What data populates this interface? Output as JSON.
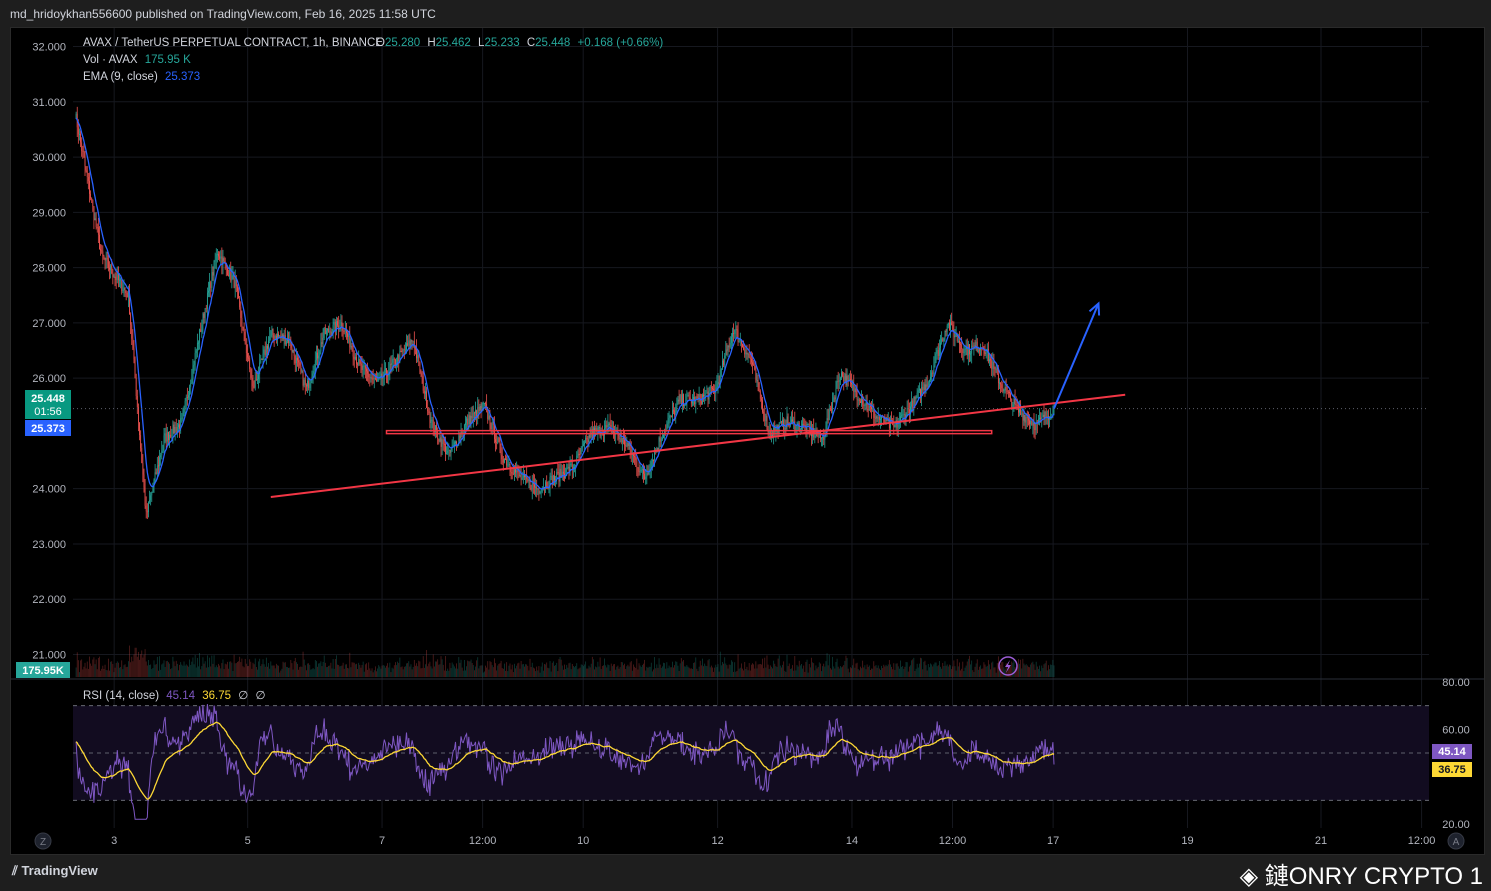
{
  "publish": {
    "author_line": "md_hridoykhan556600 published on TradingView.com, Feb 16, 2025 11:58 UTC"
  },
  "legend": {
    "symbol": "AVAX / TetherUS PERPETUAL CONTRACT, 1h, BINANCE",
    "o_label": "O",
    "o_val": "25.280",
    "h_label": "H",
    "h_val": "25.462",
    "l_label": "L",
    "l_val": "25.233",
    "c_label": "C",
    "c_val": "25.448",
    "change": "+0.168 (+0.66%)",
    "vol_label": "Vol · AVAX",
    "vol_val": "175.95 K",
    "ema_label": "EMA (9, close)",
    "ema_val": "25.373"
  },
  "rsi_legend": {
    "label": "RSI (14, close)",
    "rsi_val": "45.14",
    "ma_val": "36.75",
    "extra1": "∅",
    "extra2": "∅"
  },
  "badges": {
    "price": "25.448",
    "countdown": "01:56",
    "ema": "25.373",
    "volume": "175.95K",
    "rsi": "45.14",
    "rsi_ma": "36.75"
  },
  "footer": {
    "brand": "TradingView",
    "watermark": "鏈ONRY CRYPTO 1",
    "z_btn": "Z",
    "a_btn": "A"
  },
  "colors": {
    "up": "#26a69a",
    "down": "#ef5350",
    "ema": "#2962ff",
    "trend": "#f23645",
    "rsi": "#7e57c2",
    "rsi_ma": "#fdd835",
    "arrow": "#2962ff"
  },
  "chart_data": {
    "type": "candlestick",
    "symbol": "AVAX / TetherUS PERPETUAL CONTRACT",
    "interval": "1h",
    "exchange": "BINANCE",
    "x_ticks": [
      "3",
      "5",
      "7",
      "12:00",
      "10",
      "12",
      "14",
      "12:00",
      "17",
      "19",
      "21",
      "12:00"
    ],
    "y_ticks": [
      "32.000",
      "31.000",
      "30.000",
      "29.000",
      "28.000",
      "27.000",
      "26.000",
      "24.000",
      "23.000",
      "22.000",
      "21.000"
    ],
    "ylim": [
      20.9,
      32.1
    ],
    "price_path": [
      [
        0,
        30.8
      ],
      [
        3,
        28.2
      ],
      [
        6,
        27.5
      ],
      [
        8,
        23.5
      ],
      [
        10,
        24.9
      ],
      [
        12,
        25.2
      ],
      [
        14,
        26.8
      ],
      [
        16,
        28.3
      ],
      [
        18,
        27.7
      ],
      [
        20,
        25.8
      ],
      [
        22,
        26.8
      ],
      [
        24,
        26.7
      ],
      [
        26,
        25.8
      ],
      [
        28,
        26.8
      ],
      [
        30,
        27.0
      ],
      [
        32,
        26.2
      ],
      [
        34,
        25.9
      ],
      [
        36,
        26.3
      ],
      [
        38,
        26.7
      ],
      [
        40,
        25.2
      ],
      [
        42,
        24.6
      ],
      [
        44,
        25.2
      ],
      [
        46,
        25.5
      ],
      [
        48,
        24.6
      ],
      [
        50,
        24.2
      ],
      [
        52,
        24.0
      ],
      [
        54,
        24.2
      ],
      [
        56,
        24.4
      ],
      [
        58,
        25.0
      ],
      [
        60,
        25.1
      ],
      [
        62,
        24.8
      ],
      [
        64,
        24.2
      ],
      [
        66,
        25.0
      ],
      [
        68,
        25.6
      ],
      [
        70,
        25.6
      ],
      [
        72,
        25.8
      ],
      [
        74,
        26.9
      ],
      [
        76,
        26.3
      ],
      [
        78,
        25.0
      ],
      [
        80,
        25.2
      ],
      [
        82,
        25.1
      ],
      [
        84,
        24.9
      ],
      [
        86,
        26.1
      ],
      [
        88,
        25.7
      ],
      [
        90,
        25.3
      ],
      [
        92,
        25.1
      ],
      [
        94,
        25.5
      ],
      [
        96,
        26.0
      ],
      [
        98,
        27.0
      ],
      [
        100,
        26.5
      ],
      [
        102,
        26.6
      ],
      [
        104,
        25.9
      ],
      [
        106,
        25.4
      ],
      [
        108,
        25.15
      ],
      [
        110,
        25.45
      ]
    ],
    "volume_last": "175.95K",
    "rsi": {
      "period": 14,
      "current": 45.14,
      "ma": 36.75,
      "bands": [
        70,
        50,
        30
      ],
      "y_ticks": [
        "80.00",
        "60.00",
        "20.00"
      ],
      "ylim": [
        20,
        80
      ]
    },
    "annotations": {
      "ascending_trendline": [
        [
          22,
          23.85
        ],
        [
          118,
          25.7
        ]
      ],
      "horizontal_zone": [
        35,
        25.0,
        103,
        25.05
      ],
      "projected_arrow": [
        [
          110,
          25.45
        ],
        [
          115,
          27.35
        ]
      ]
    }
  }
}
